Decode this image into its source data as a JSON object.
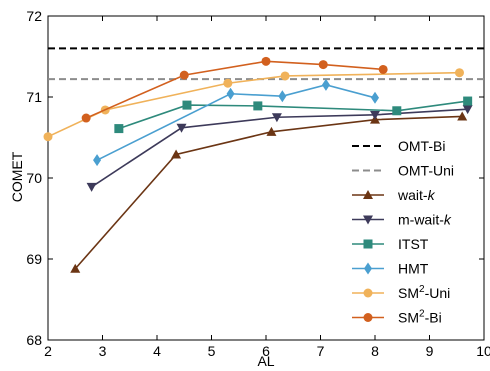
{
  "chart_data": {
    "type": "line",
    "xlabel": "AL",
    "ylabel": "COMET",
    "xlim": [
      2,
      10
    ],
    "ylim": [
      68,
      72
    ],
    "xticks": [
      "2",
      "3",
      "4",
      "5",
      "6",
      "7",
      "8",
      "9",
      "10"
    ],
    "yticks": [
      "68",
      "69",
      "70",
      "71",
      "72"
    ],
    "legend_position": "bottom-right",
    "grid": false,
    "reference_lines": [
      {
        "name": "OMT-Bi",
        "y": 71.6,
        "color": "#000000",
        "style": "dashed"
      },
      {
        "name": "OMT-Uni",
        "y": 71.22,
        "color": "#8c8c8c",
        "style": "dashed"
      }
    ],
    "series": [
      {
        "name": "wait-k",
        "name_prefix": "wait-",
        "name_italic": "k",
        "color": "#6b3514",
        "marker": "triangle-up",
        "x": [
          2.5,
          4.35,
          6.1,
          8.0,
          9.6
        ],
        "y": [
          68.88,
          70.29,
          70.57,
          70.72,
          70.76
        ]
      },
      {
        "name": "m-wait-k",
        "name_prefix": "m-wait-",
        "name_italic": "k",
        "color": "#3d3a5a",
        "marker": "triangle-down",
        "x": [
          2.8,
          4.45,
          6.2,
          8.0,
          9.7
        ],
        "y": [
          69.89,
          70.62,
          70.75,
          70.78,
          70.85
        ]
      },
      {
        "name": "ITST",
        "color": "#2e8a7c",
        "marker": "square",
        "x": [
          3.3,
          4.55,
          5.85,
          8.4,
          9.7
        ],
        "y": [
          70.61,
          70.9,
          70.89,
          70.83,
          70.95
        ]
      },
      {
        "name": "HMT",
        "color": "#4a9fd0",
        "marker": "diamond",
        "x": [
          2.9,
          5.35,
          6.3,
          7.1,
          8.0
        ],
        "y": [
          70.22,
          71.04,
          71.01,
          71.15,
          70.99
        ]
      },
      {
        "name": "SM2-Uni",
        "name_prefix": "SM",
        "name_sup": "2",
        "name_suffix": "-Uni",
        "color": "#f0b25a",
        "marker": "circle",
        "x": [
          2.0,
          3.05,
          5.3,
          6.35,
          9.55
        ],
        "y": [
          70.51,
          70.84,
          71.17,
          71.26,
          71.3
        ]
      },
      {
        "name": "SM2-Bi",
        "name_prefix": "SM",
        "name_sup": "2",
        "name_suffix": "-Bi",
        "color": "#d2601e",
        "marker": "circle",
        "x": [
          2.7,
          4.5,
          6.0,
          7.05,
          8.15
        ],
        "y": [
          70.74,
          71.27,
          71.44,
          71.4,
          71.34
        ]
      }
    ]
  }
}
